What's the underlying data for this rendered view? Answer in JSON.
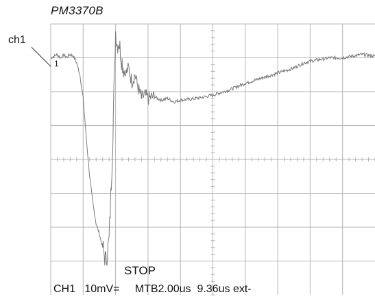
{
  "header": {
    "model": "PM3370B"
  },
  "channel_marker": {
    "label": "ch1",
    "ground_tick": "1"
  },
  "status": {
    "state": "STOP",
    "channel": "CH1",
    "volts_per_div": "10mV=",
    "timebase": "MTB2.00us",
    "trigger_delay": "9.36us",
    "trigger_source": "ext-"
  },
  "screen": {
    "grid_divisions_x": 10,
    "grid_divisions_y": 8,
    "colors": {
      "grid": "#b4b4b4",
      "trace": "#7a7a7a",
      "text": "#111111"
    }
  },
  "chart_data": {
    "type": "line",
    "title": "",
    "xlabel": "",
    "ylabel": "",
    "xlim": [
      0,
      10
    ],
    "ylim": [
      -4,
      4
    ],
    "grid": true,
    "series": [
      {
        "x": [
          0,
          0.1,
          0.2,
          0.3,
          0.4,
          0.5,
          0.6,
          0.7,
          0.8,
          0.9,
          1.0,
          1.1,
          1.2,
          1.3,
          1.4,
          1.5,
          1.6,
          1.7,
          1.8,
          1.9,
          2.0,
          2.05,
          2.1,
          2.2,
          2.3,
          2.4,
          2.5,
          2.6,
          2.7,
          2.8,
          2.9,
          3.0,
          3.2,
          3.4,
          3.6,
          3.8,
          4.0,
          4.3,
          4.6,
          5.0,
          5.5,
          6.0,
          6.5,
          7.0,
          7.5,
          7.8,
          8.0,
          8.3,
          8.6,
          9.0,
          9.3,
          9.6,
          10.0
        ],
        "values": [
          3.0,
          3.05,
          3.1,
          3.0,
          3.08,
          3.02,
          3.1,
          3.05,
          2.85,
          2.5,
          1.8,
          0.6,
          -0.5,
          -1.3,
          -1.9,
          -2.2,
          -2.6,
          -3.0,
          -2.4,
          0.2,
          3.8,
          3.4,
          3.5,
          2.9,
          2.5,
          2.7,
          2.3,
          2.5,
          2.1,
          1.8,
          1.9,
          1.8,
          1.85,
          1.75,
          1.8,
          1.7,
          1.75,
          1.78,
          1.82,
          1.9,
          2.05,
          2.25,
          2.4,
          2.55,
          2.7,
          2.85,
          2.9,
          2.95,
          3.0,
          3.0,
          3.05,
          3.1,
          3.05
        ]
      }
    ]
  }
}
